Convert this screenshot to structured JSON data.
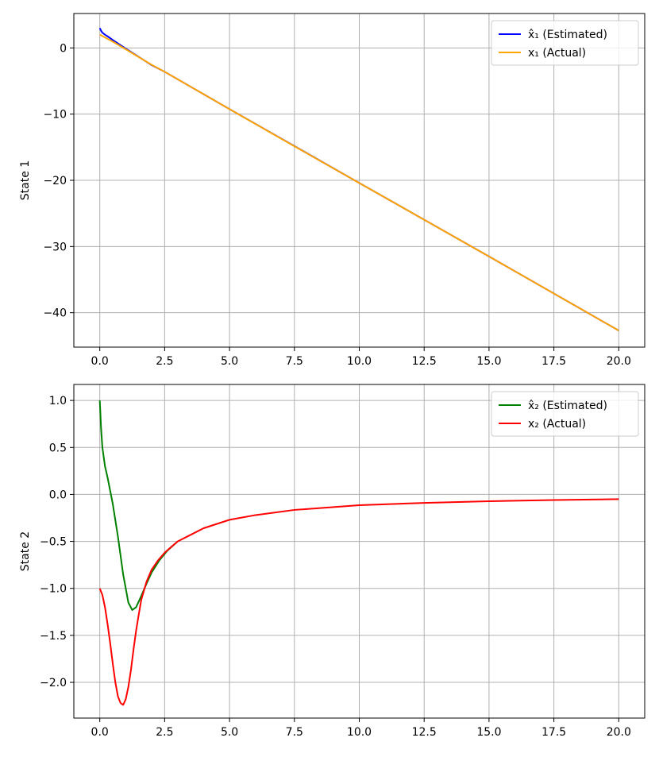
{
  "chart_data": [
    {
      "type": "line",
      "title": "",
      "xlabel": "",
      "ylabel": "State 1",
      "xlim": [
        -1,
        21
      ],
      "ylim": [
        -45.2,
        5.2
      ],
      "x_ticks": [
        0,
        2.5,
        5,
        7.5,
        10,
        12.5,
        15,
        17.5,
        20
      ],
      "x_tick_labels": [
        "0.0",
        "2.5",
        "5.0",
        "7.5",
        "10.0",
        "12.5",
        "15.0",
        "17.5",
        "20.0"
      ],
      "y_ticks": [
        0,
        -10,
        -20,
        -30,
        -40
      ],
      "y_tick_labels": [
        "0",
        "−10",
        "−20",
        "−30",
        "−40"
      ],
      "grid": true,
      "legend_position": "top-right",
      "series": [
        {
          "name": "x̂₁ (Estimated)",
          "color": "#0000ff",
          "x": [
            0,
            0.05,
            0.1,
            0.2,
            0.3,
            0.5,
            1,
            2,
            2.5,
            5,
            10,
            15,
            20
          ],
          "y": [
            3.0,
            2.6,
            2.3,
            2.0,
            1.75,
            1.2,
            -0.1,
            -2.6,
            -3.6,
            -9.25,
            -20.4,
            -31.5,
            -42.7
          ]
        },
        {
          "name": "x₁ (Actual)",
          "color": "#ffa500",
          "x": [
            0,
            0.5,
            1,
            2,
            2.5,
            5,
            7.5,
            10,
            12.5,
            15,
            17.5,
            20
          ],
          "y": [
            2.0,
            0.95,
            -0.2,
            -2.55,
            -3.6,
            -9.25,
            -14.85,
            -20.4,
            -25.95,
            -31.5,
            -37.1,
            -42.7
          ]
        }
      ]
    },
    {
      "type": "line",
      "title": "",
      "xlabel": "",
      "ylabel": "State 2",
      "xlim": [
        -1,
        21
      ],
      "ylim": [
        -2.38,
        1.17
      ],
      "x_ticks": [
        0,
        2.5,
        5,
        7.5,
        10,
        12.5,
        15,
        17.5,
        20
      ],
      "x_tick_labels": [
        "0.0",
        "2.5",
        "5.0",
        "7.5",
        "10.0",
        "12.5",
        "15.0",
        "17.5",
        "20.0"
      ],
      "y_ticks": [
        1.0,
        0.5,
        0.0,
        -0.5,
        -1.0,
        -1.5,
        -2.0
      ],
      "y_tick_labels": [
        "1.0",
        "0.5",
        "0.0",
        "−0.5",
        "−1.0",
        "−1.5",
        "−2.0"
      ],
      "grid": true,
      "legend_position": "top-right",
      "series": [
        {
          "name": "x̂₂ (Estimated)",
          "color": "#008000",
          "x": [
            0,
            0.05,
            0.1,
            0.2,
            0.3,
            0.5,
            0.7,
            0.9,
            1.1,
            1.25,
            1.4,
            1.6,
            1.8,
            2.0,
            2.3,
            2.6,
            3.0
          ],
          "y": [
            1.0,
            0.7,
            0.5,
            0.3,
            0.18,
            -0.1,
            -0.45,
            -0.85,
            -1.15,
            -1.23,
            -1.2,
            -1.08,
            -0.95,
            -0.83,
            -0.7,
            -0.6,
            -0.5
          ]
        },
        {
          "name": "x₂ (Actual)",
          "color": "#ff0000",
          "x": [
            0,
            0.1,
            0.2,
            0.3,
            0.4,
            0.5,
            0.6,
            0.7,
            0.8,
            0.9,
            1.0,
            1.1,
            1.2,
            1.3,
            1.4,
            1.5,
            1.6,
            1.8,
            2.0,
            2.25,
            2.5,
            2.75,
            3.0,
            3.5,
            4,
            5,
            6,
            7.5,
            10,
            12.5,
            15,
            17.5,
            20
          ],
          "y": [
            -1.0,
            -1.07,
            -1.2,
            -1.38,
            -1.58,
            -1.8,
            -2.0,
            -2.15,
            -2.22,
            -2.24,
            -2.18,
            -2.05,
            -1.87,
            -1.65,
            -1.45,
            -1.28,
            -1.12,
            -0.93,
            -0.8,
            -0.7,
            -0.62,
            -0.56,
            -0.5,
            -0.43,
            -0.36,
            -0.27,
            -0.22,
            -0.165,
            -0.115,
            -0.09,
            -0.072,
            -0.06,
            -0.05
          ]
        }
      ]
    }
  ]
}
